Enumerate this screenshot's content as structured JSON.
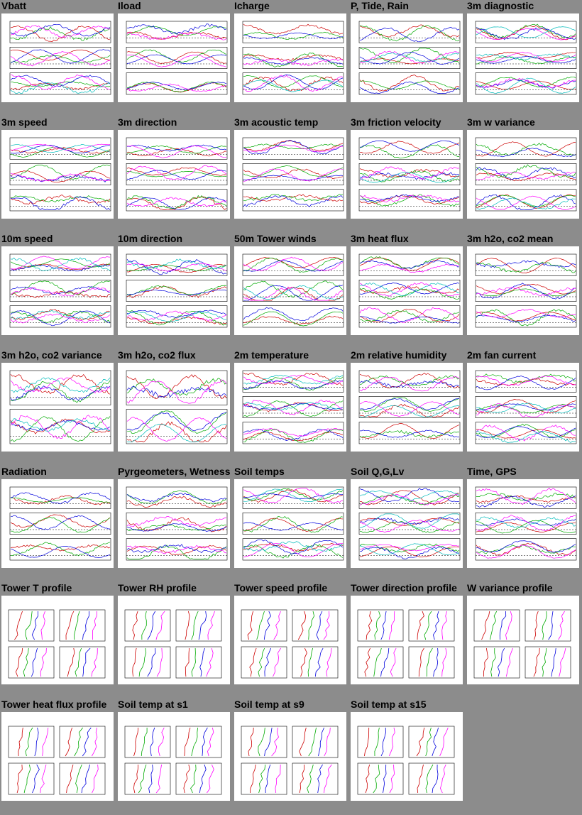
{
  "columns": 5,
  "plots": [
    {
      "title": "Vbatt",
      "kind": "ts"
    },
    {
      "title": "Iload",
      "kind": "ts"
    },
    {
      "title": "Icharge",
      "kind": "ts"
    },
    {
      "title": "P, Tide, Rain",
      "kind": "ts"
    },
    {
      "title": "3m diagnostic",
      "kind": "ts"
    },
    {
      "title": "3m speed",
      "kind": "ts"
    },
    {
      "title": "3m direction",
      "kind": "ts"
    },
    {
      "title": "3m acoustic temp",
      "kind": "ts"
    },
    {
      "title": "3m friction velocity",
      "kind": "ts"
    },
    {
      "title": "3m w variance",
      "kind": "ts"
    },
    {
      "title": "10m speed",
      "kind": "ts"
    },
    {
      "title": "10m direction",
      "kind": "ts"
    },
    {
      "title": "50m Tower winds",
      "kind": "ts"
    },
    {
      "title": "3m heat flux",
      "kind": "ts"
    },
    {
      "title": "3m h2o, co2 mean",
      "kind": "ts"
    },
    {
      "title": "3m h2o, co2 variance",
      "kind": "ts2"
    },
    {
      "title": "3m h2o, co2 flux",
      "kind": "ts2"
    },
    {
      "title": "2m temperature",
      "kind": "ts"
    },
    {
      "title": "2m relative humidity",
      "kind": "ts"
    },
    {
      "title": "2m fan current",
      "kind": "ts"
    },
    {
      "title": "Radiation",
      "kind": "ts"
    },
    {
      "title": "Pyrgeometers, Wetness",
      "kind": "ts"
    },
    {
      "title": "Soil temps",
      "kind": "ts"
    },
    {
      "title": "Soil Q,G,Lv",
      "kind": "ts"
    },
    {
      "title": "Time, GPS",
      "kind": "ts"
    },
    {
      "title": "Tower T profile",
      "kind": "profile"
    },
    {
      "title": "Tower RH profile",
      "kind": "profile"
    },
    {
      "title": "Tower speed profile",
      "kind": "profile"
    },
    {
      "title": "Tower direction profile",
      "kind": "profile"
    },
    {
      "title": "W variance profile",
      "kind": "profile"
    },
    {
      "title": "Tower heat flux profile",
      "kind": "profile"
    },
    {
      "title": "Soil temp at s1",
      "kind": "profile"
    },
    {
      "title": "Soil temp at s9",
      "kind": "profile"
    },
    {
      "title": "Soil temp at s15",
      "kind": "profile"
    }
  ],
  "colors": {
    "background": "#8c8c8c",
    "panel": "#ffffff",
    "series": [
      "#cc0000",
      "#00aa00",
      "#0000dd",
      "#ff00ff",
      "#00bbbb",
      "#ff9900"
    ]
  }
}
